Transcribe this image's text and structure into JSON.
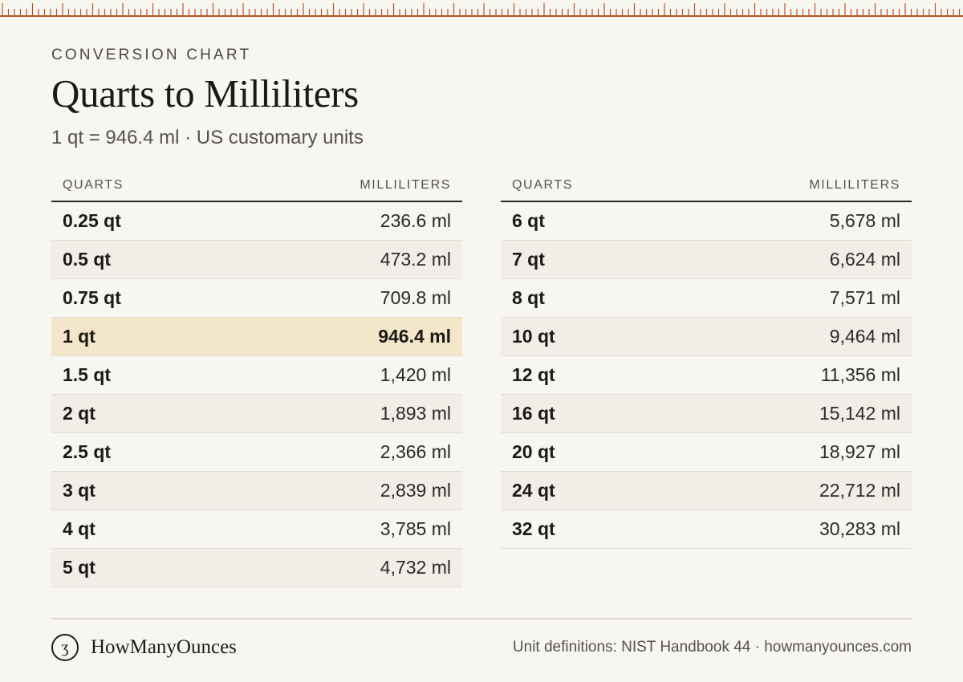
{
  "header": {
    "eyebrow": "CONVERSION CHART",
    "title": "Quarts to Milliliters",
    "subtitle": "1 qt = 946.4 ml · US customary units"
  },
  "table_left": {
    "columns": [
      "QUARTS",
      "MILLILITERS"
    ],
    "rows": [
      {
        "quarts": "0.25 qt",
        "milliliters": "236.6 ml"
      },
      {
        "quarts": "0.5 qt",
        "milliliters": "473.2 ml"
      },
      {
        "quarts": "0.75 qt",
        "milliliters": "709.8 ml"
      },
      {
        "quarts": "1 qt",
        "milliliters": "946.4 ml",
        "highlight": true
      },
      {
        "quarts": "1.5 qt",
        "milliliters": "1,420 ml"
      },
      {
        "quarts": "2 qt",
        "milliliters": "1,893 ml"
      },
      {
        "quarts": "2.5 qt",
        "milliliters": "2,366 ml"
      },
      {
        "quarts": "3 qt",
        "milliliters": "2,839 ml"
      },
      {
        "quarts": "4 qt",
        "milliliters": "3,785 ml"
      },
      {
        "quarts": "5 qt",
        "milliliters": "4,732 ml"
      }
    ]
  },
  "table_right": {
    "columns": [
      "QUARTS",
      "MILLILITERS"
    ],
    "rows": [
      {
        "quarts": "6 qt",
        "milliliters": "5,678 ml"
      },
      {
        "quarts": "7 qt",
        "milliliters": "6,624 ml"
      },
      {
        "quarts": "8 qt",
        "milliliters": "7,571 ml"
      },
      {
        "quarts": "10 qt",
        "milliliters": "9,464 ml"
      },
      {
        "quarts": "12 qt",
        "milliliters": "11,356 ml"
      },
      {
        "quarts": "16 qt",
        "milliliters": "15,142 ml"
      },
      {
        "quarts": "20 qt",
        "milliliters": "18,927 ml"
      },
      {
        "quarts": "24 qt",
        "milliliters": "22,712 ml"
      },
      {
        "quarts": "32 qt",
        "milliliters": "30,283 ml"
      }
    ]
  },
  "footer": {
    "logo_glyph": "ʒ",
    "logo_icon": "ounce-symbol-icon",
    "brand": "HowManyOunces",
    "source": "Unit definitions: NIST Handbook 44 · howmanyounces.com"
  },
  "colors": {
    "ruler_accent": "#b5562b",
    "highlight_row": "#f4e6c8",
    "background": "#f8f6f1"
  }
}
